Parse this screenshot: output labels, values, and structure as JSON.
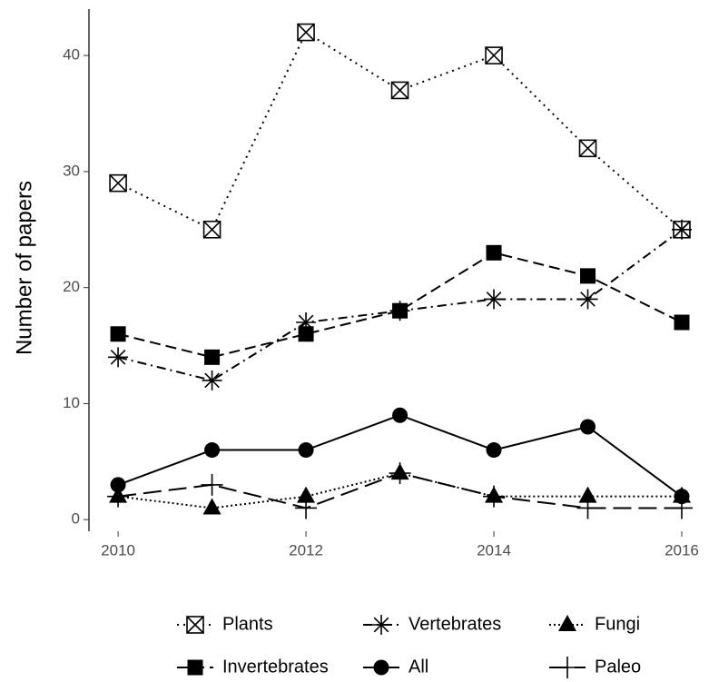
{
  "chart_data": {
    "type": "line",
    "y_label": "Number of papers",
    "x": [
      2010,
      2011,
      2012,
      2013,
      2014,
      2015,
      2016
    ],
    "xlim": [
      2009.69,
      2016.29
    ],
    "xticks": [
      2010,
      2012,
      2014,
      2016
    ],
    "ylim": [
      -1,
      44
    ],
    "yticks": [
      0,
      10,
      20,
      30,
      40
    ],
    "series": [
      {
        "name": "Plants",
        "color": "#000000",
        "linestyle": "dotted",
        "marker": "square-x",
        "values": [
          29,
          25,
          42,
          37,
          40,
          32,
          25
        ]
      },
      {
        "name": "Vertebrates",
        "color": "#000000",
        "linestyle": "dashdot",
        "marker": "star",
        "values": [
          14,
          12,
          17,
          18,
          19,
          19,
          25
        ]
      },
      {
        "name": "Fungi",
        "color": "#000000",
        "linestyle": "shortdot",
        "marker": "triangle",
        "values": [
          2,
          1,
          2,
          4,
          2,
          2,
          2
        ]
      },
      {
        "name": "Invertebrates",
        "color": "#000000",
        "linestyle": "dashed",
        "marker": "square",
        "values": [
          16,
          14,
          16,
          18,
          23,
          21,
          17
        ]
      },
      {
        "name": "All",
        "color": "#000000",
        "linestyle": "solid",
        "marker": "circle",
        "values": [
          3,
          6,
          6,
          9,
          6,
          8,
          2
        ]
      },
      {
        "name": "Paleo",
        "color": "#000000",
        "linestyle": "longdash",
        "marker": "plus",
        "values": [
          2,
          3,
          1,
          4,
          2,
          1,
          1
        ]
      }
    ]
  }
}
